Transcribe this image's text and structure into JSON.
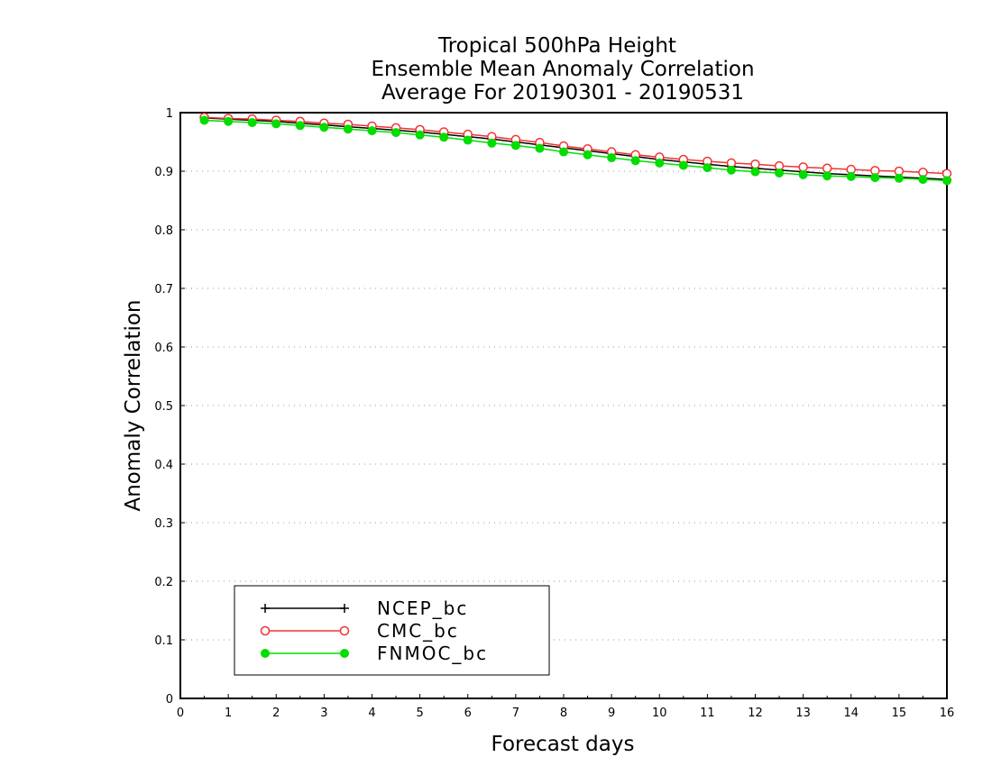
{
  "chart_data": {
    "type": "line",
    "title_lines": [
      "Tropical 500hPa Height",
      "Ensemble Mean Anomaly Correlation",
      "Average For 20190301 - 20190531"
    ],
    "xlabel": "Forecast days",
    "ylabel": "Anomaly Correlation",
    "xlim": [
      0,
      16
    ],
    "ylim": [
      0,
      1
    ],
    "x_ticks": [
      "0",
      "1",
      "2",
      "3",
      "4",
      "5",
      "6",
      "7",
      "8",
      "9",
      "10",
      "11",
      "12",
      "13",
      "14",
      "15",
      "16"
    ],
    "y_ticks": [
      "0",
      "0.1",
      "0.2",
      "0.3",
      "0.4",
      "0.5",
      "0.6",
      "0.7",
      "0.8",
      "0.9",
      "1"
    ],
    "grid": "dotted horizontal",
    "legend_position": "bottom-left",
    "x": [
      0.5,
      1,
      1.5,
      2,
      2.5,
      3,
      3.5,
      4,
      4.5,
      5,
      5.5,
      6,
      6.5,
      7,
      7.5,
      8,
      8.5,
      9,
      9.5,
      10,
      10.5,
      11,
      11.5,
      12,
      12.5,
      13,
      13.5,
      14,
      14.5,
      15,
      15.5,
      16
    ],
    "series": [
      {
        "name": "NCEP_bc",
        "color": "#000000",
        "marker": "plus",
        "values": [
          0.991,
          0.989,
          0.987,
          0.985,
          0.982,
          0.979,
          0.976,
          0.973,
          0.97,
          0.967,
          0.963,
          0.959,
          0.955,
          0.95,
          0.945,
          0.94,
          0.935,
          0.93,
          0.925,
          0.92,
          0.916,
          0.912,
          0.908,
          0.905,
          0.902,
          0.899,
          0.896,
          0.894,
          0.892,
          0.89,
          0.888,
          0.886
        ]
      },
      {
        "name": "CMC_bc",
        "color": "#ee3333",
        "marker": "open-circle",
        "values": [
          0.992,
          0.99,
          0.989,
          0.987,
          0.985,
          0.982,
          0.98,
          0.977,
          0.974,
          0.971,
          0.967,
          0.963,
          0.959,
          0.954,
          0.949,
          0.943,
          0.938,
          0.933,
          0.928,
          0.924,
          0.92,
          0.917,
          0.914,
          0.912,
          0.909,
          0.907,
          0.905,
          0.903,
          0.901,
          0.9,
          0.898,
          0.896
        ]
      },
      {
        "name": "FNMOC_bc",
        "color": "#00dd00",
        "marker": "filled-circle",
        "values": [
          0.987,
          0.985,
          0.983,
          0.981,
          0.978,
          0.975,
          0.972,
          0.969,
          0.966,
          0.962,
          0.958,
          0.953,
          0.948,
          0.944,
          0.939,
          0.933,
          0.928,
          0.923,
          0.918,
          0.914,
          0.91,
          0.906,
          0.902,
          0.899,
          0.897,
          0.894,
          0.892,
          0.891,
          0.889,
          0.888,
          0.886,
          0.884
        ]
      }
    ]
  }
}
